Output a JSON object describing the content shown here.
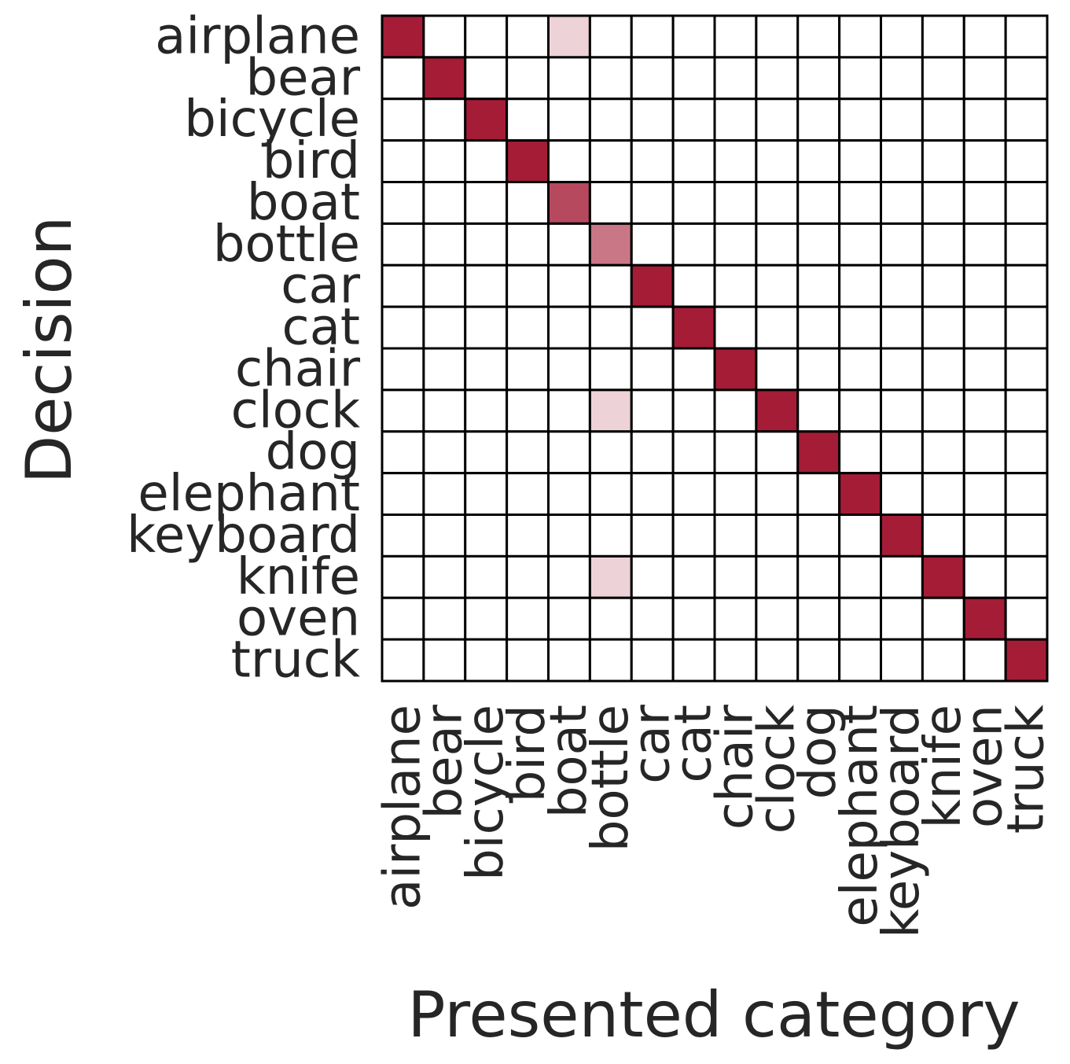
{
  "chart_data": {
    "type": "heatmap",
    "xlabel": "Presented category",
    "ylabel": "Decision",
    "x_categories": [
      "airplane",
      "bear",
      "bicycle",
      "bird",
      "boat",
      "bottle",
      "car",
      "cat",
      "chair",
      "clock",
      "dog",
      "elephant",
      "keyboard",
      "knife",
      "oven",
      "truck"
    ],
    "y_categories": [
      "airplane",
      "bear",
      "bicycle",
      "bird",
      "boat",
      "bottle",
      "car",
      "cat",
      "chair",
      "clock",
      "dog",
      "elephant",
      "keyboard",
      "knife",
      "oven",
      "truck"
    ],
    "values": [
      [
        1,
        0,
        0,
        0,
        0.2,
        0,
        0,
        0,
        0,
        0,
        0,
        0,
        0,
        0,
        0,
        0
      ],
      [
        0,
        1,
        0,
        0,
        0,
        0,
        0,
        0,
        0,
        0,
        0,
        0,
        0,
        0,
        0,
        0
      ],
      [
        0,
        0,
        1,
        0,
        0,
        0,
        0,
        0,
        0,
        0,
        0,
        0,
        0,
        0,
        0,
        0
      ],
      [
        0,
        0,
        0,
        1,
        0,
        0,
        0,
        0,
        0,
        0,
        0,
        0,
        0,
        0,
        0,
        0
      ],
      [
        0,
        0,
        0,
        0,
        0.8,
        0,
        0,
        0,
        0,
        0,
        0,
        0,
        0,
        0,
        0,
        0
      ],
      [
        0,
        0,
        0,
        0,
        0,
        0.6,
        0,
        0,
        0,
        0,
        0,
        0,
        0,
        0,
        0,
        0
      ],
      [
        0,
        0,
        0,
        0,
        0,
        0,
        1,
        0,
        0,
        0,
        0,
        0,
        0,
        0,
        0,
        0
      ],
      [
        0,
        0,
        0,
        0,
        0,
        0,
        0,
        1,
        0,
        0,
        0,
        0,
        0,
        0,
        0,
        0
      ],
      [
        0,
        0,
        0,
        0,
        0,
        0,
        0,
        0,
        1,
        0,
        0,
        0,
        0,
        0,
        0,
        0
      ],
      [
        0,
        0,
        0,
        0,
        0,
        0.2,
        0,
        0,
        0,
        1,
        0,
        0,
        0,
        0,
        0,
        0
      ],
      [
        0,
        0,
        0,
        0,
        0,
        0,
        0,
        0,
        0,
        0,
        1,
        0,
        0,
        0,
        0,
        0
      ],
      [
        0,
        0,
        0,
        0,
        0,
        0,
        0,
        0,
        0,
        0,
        0,
        1,
        0,
        0,
        0,
        0
      ],
      [
        0,
        0,
        0,
        0,
        0,
        0,
        0,
        0,
        0,
        0,
        0,
        0,
        1,
        0,
        0,
        0
      ],
      [
        0,
        0,
        0,
        0,
        0,
        0.2,
        0,
        0,
        0,
        0,
        0,
        0,
        0,
        1,
        0,
        0
      ],
      [
        0,
        0,
        0,
        0,
        0,
        0,
        0,
        0,
        0,
        0,
        0,
        0,
        0,
        0,
        1,
        0
      ],
      [
        0,
        0,
        0,
        0,
        0,
        0,
        0,
        0,
        0,
        0,
        0,
        0,
        0,
        0,
        0,
        1
      ]
    ],
    "vrange": [
      0,
      1
    ],
    "color_max": "#a51c36",
    "color_min": "#ffffff",
    "grid_color": "#000000",
    "grid": true,
    "legend": "none"
  }
}
